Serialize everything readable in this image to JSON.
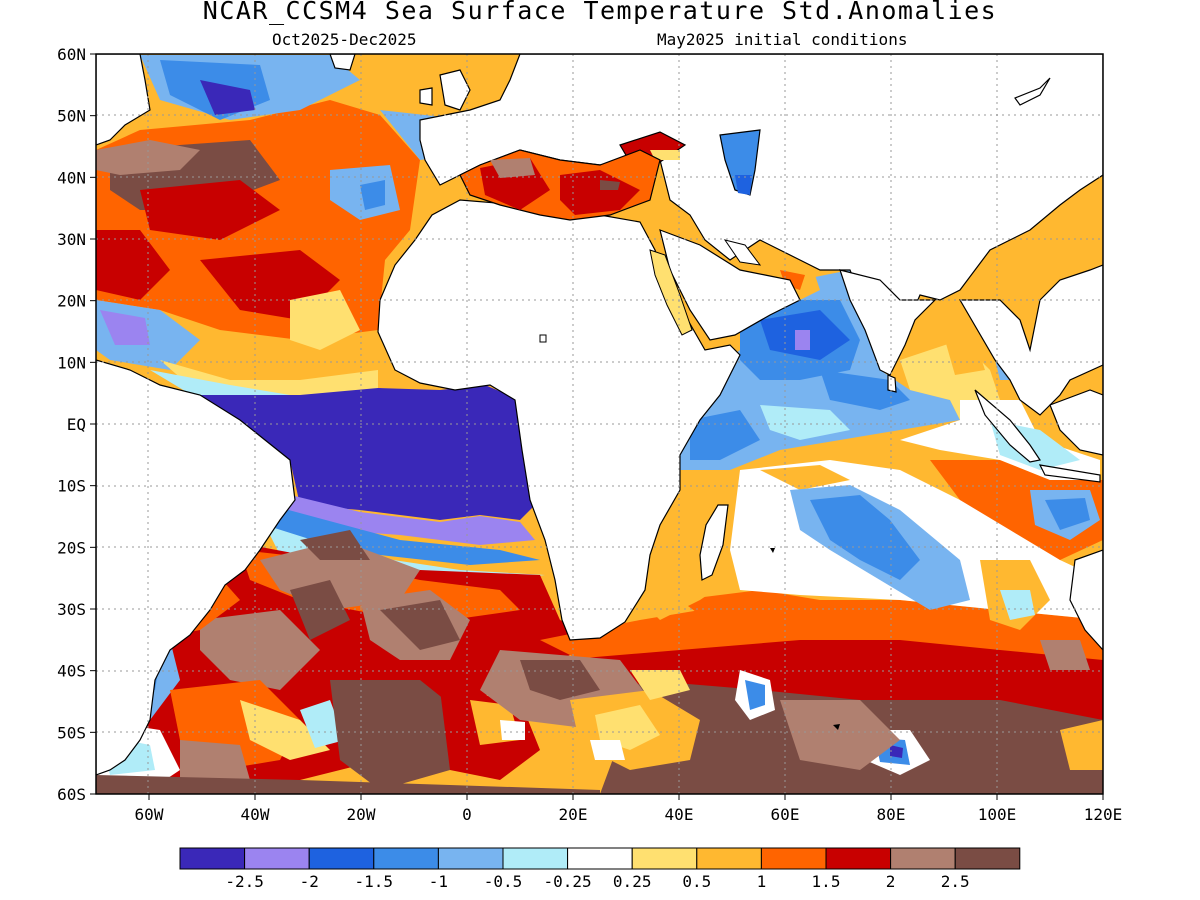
{
  "title": "NCAR_CCSM4 Sea Surface Temperature Std.Anomalies",
  "period": "Oct2025-Dec2025",
  "init": "May2025 initial conditions",
  "lat_labels": [
    {
      "label": "60N",
      "lat": 60
    },
    {
      "label": "50N",
      "lat": 50
    },
    {
      "label": "40N",
      "lat": 40
    },
    {
      "label": "30N",
      "lat": 30
    },
    {
      "label": "20N",
      "lat": 20
    },
    {
      "label": "10N",
      "lat": 10
    },
    {
      "label": "EQ",
      "lat": 0
    },
    {
      "label": "10S",
      "lat": -10
    },
    {
      "label": "20S",
      "lat": -20
    },
    {
      "label": "30S",
      "lat": -30
    },
    {
      "label": "40S",
      "lat": -40
    },
    {
      "label": "50S",
      "lat": -50
    },
    {
      "label": "60S",
      "lat": -60
    }
  ],
  "lon_labels": [
    {
      "label": "60W",
      "lon": -60
    },
    {
      "label": "40W",
      "lon": -40
    },
    {
      "label": "20W",
      "lon": -20
    },
    {
      "label": "0",
      "lon": 0
    },
    {
      "label": "20E",
      "lon": 20
    },
    {
      "label": "40E",
      "lon": 40
    },
    {
      "label": "60E",
      "lon": 60
    },
    {
      "label": "80E",
      "lon": 80
    },
    {
      "label": "100E",
      "lon": 100
    },
    {
      "label": "120E",
      "lon": 120
    }
  ],
  "colorbar": {
    "colors": [
      "#3a28b8",
      "#9b84f0",
      "#1e62e0",
      "#3c8ce8",
      "#78b4f0",
      "#b0ecf8",
      "#ffffff",
      "#ffe070",
      "#ffb830",
      "#ff6400",
      "#c80000",
      "#b08070",
      "#7a4c44"
    ],
    "labels": [
      "-2.5",
      "-2",
      "-1.5",
      "-1",
      "-0.5",
      "-0.25",
      "0.25",
      "0.5",
      "1",
      "1.5",
      "2",
      "2.5"
    ]
  }
}
